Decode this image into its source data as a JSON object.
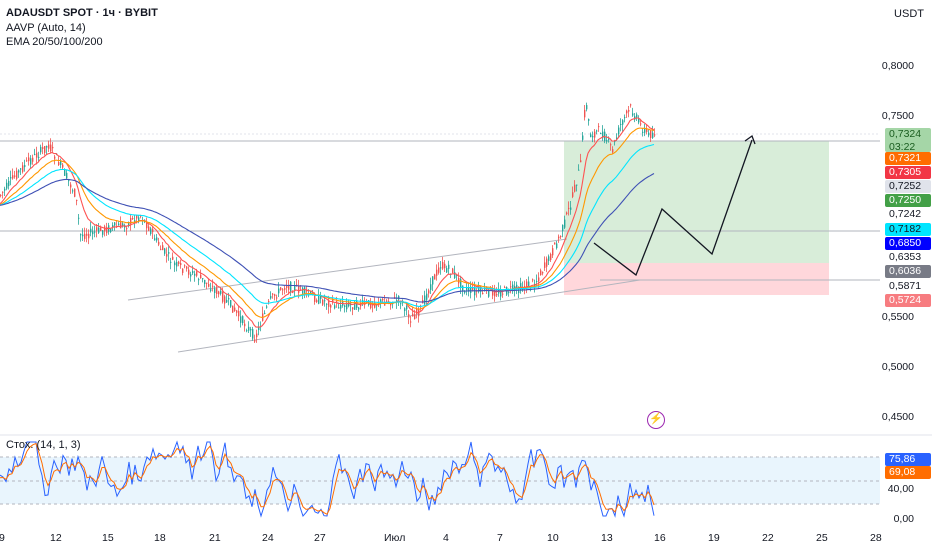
{
  "legend": {
    "symbol": "ADAUSDT SPOT · 1ч · BYBIT",
    "indicator1": "AAVP (Auto, 14)",
    "indicator2": "EMA 20/50/100/200"
  },
  "currency": "USDT",
  "price_axis": {
    "ticks": [
      "0,8000",
      "0,7500",
      "0,5500",
      "0,5000",
      "0,4500"
    ],
    "labels": [
      {
        "text": "0,7324",
        "sub": "03:22",
        "bg": "#a5d6a7",
        "fg": "#1b5e20"
      },
      {
        "text": "0,7321",
        "bg": "#ff6d00",
        "fg": "#ffffff"
      },
      {
        "text": "0,7305",
        "bg": "#f23645",
        "fg": "#ffffff"
      },
      {
        "text": "0,7252",
        "bg": "#e0e3eb",
        "fg": "#131722"
      },
      {
        "text": "0,7250",
        "bg": "#43a047",
        "fg": "#ffffff"
      },
      {
        "text": "0,7242",
        "bg": "#ffffff",
        "fg": "#131722"
      },
      {
        "text": "0,7182",
        "bg": "#00e5ff",
        "fg": "#131722"
      },
      {
        "text": "0,6850",
        "bg": "#0000ff",
        "fg": "#ffffff"
      },
      {
        "text": "0,6353",
        "bg": "#ffffff",
        "fg": "#131722"
      },
      {
        "text": "0,6036",
        "bg": "#787b86",
        "fg": "#ffffff"
      },
      {
        "text": "0,5871",
        "bg": "#ffffff",
        "fg": "#131722"
      },
      {
        "text": "0,5724",
        "bg": "#f77c80",
        "fg": "#ffffff"
      }
    ]
  },
  "stoch": {
    "title": "Стох. (14, 1, 3)",
    "k_value": "75,86",
    "d_value": "69,08",
    "ticks": [
      "40,00",
      "0,00"
    ],
    "k_color": "#2962ff",
    "d_color": "#ff6d00"
  },
  "time_axis": [
    "9",
    "12",
    "15",
    "18",
    "21",
    "24",
    "27",
    "Июл",
    "4",
    "7",
    "10",
    "13",
    "16",
    "19",
    "22",
    "25",
    "28"
  ],
  "colors": {
    "up": "#26a69a",
    "down": "#ef5350",
    "ema20": "#ff5252",
    "ema50": "#ff9800",
    "ema100": "#00e5ff",
    "ema200": "#3f51b5",
    "profit_zone": "#c8e6c9",
    "loss_zone": "#ffcdd2"
  },
  "icons": {
    "alert": "lightning-icon"
  }
}
